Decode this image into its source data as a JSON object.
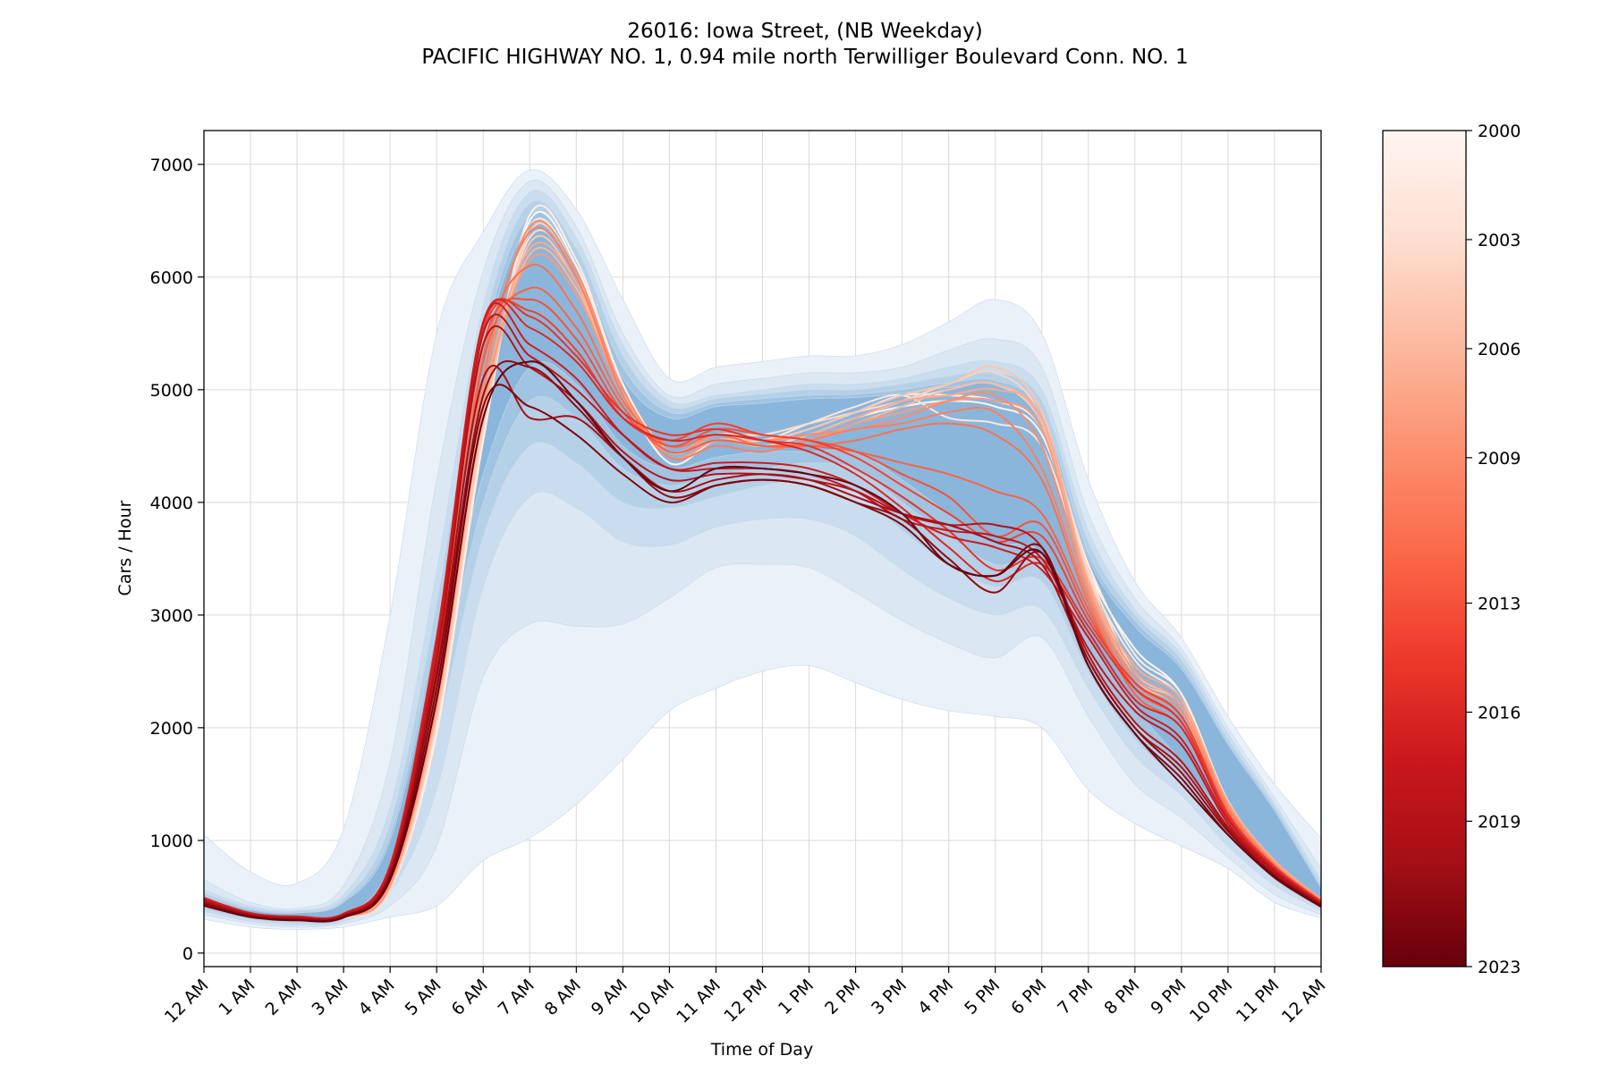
{
  "chart_data": {
    "type": "line",
    "title": "26016: Iowa Street, (NB Weekday)",
    "subtitle": "PACIFIC HIGHWAY NO. 1,  0.94 mile north Terwilliger Boulevard Conn. NO. 1",
    "xlabel": "Time of Day",
    "ylabel": "Cars / Hour",
    "grid": true,
    "x": [
      0,
      1,
      2,
      3,
      4,
      5,
      6,
      7,
      8,
      9,
      10,
      11,
      12,
      13,
      14,
      15,
      16,
      17,
      18,
      19,
      20,
      21,
      22,
      23,
      24
    ],
    "xticks": [
      "12 AM",
      "1 AM",
      "2 AM",
      "3 AM",
      "4 AM",
      "5 AM",
      "6 AM",
      "7 AM",
      "8 AM",
      "9 AM",
      "10 AM",
      "11 AM",
      "12 PM",
      "1 PM",
      "2 PM",
      "3 PM",
      "4 PM",
      "5 PM",
      "6 PM",
      "7 PM",
      "8 PM",
      "9 PM",
      "10 PM",
      "11 PM",
      "12 AM"
    ],
    "xlim": [
      0,
      24
    ],
    "yticks": [
      0,
      1000,
      2000,
      3000,
      4000,
      5000,
      6000,
      7000
    ],
    "ylim": [
      -120,
      7300
    ],
    "bands": [
      {
        "upper": [
          1050,
          720,
          620,
          1100,
          3000,
          5500,
          6400,
          6950,
          6600,
          5800,
          5100,
          5200,
          5250,
          5300,
          5300,
          5400,
          5600,
          5800,
          5500,
          4200,
          3300,
          2800,
          2100,
          1500,
          1020
        ],
        "lower": [
          300,
          230,
          210,
          230,
          320,
          420,
          820,
          1020,
          1320,
          1720,
          2150,
          2350,
          2500,
          2550,
          2400,
          2250,
          2150,
          2100,
          2000,
          1450,
          1150,
          950,
          750,
          450,
          310
        ]
      },
      {
        "upper": [
          650,
          450,
          400,
          600,
          1700,
          4200,
          6050,
          6850,
          6450,
          5500,
          4950,
          5050,
          5100,
          5150,
          5150,
          5200,
          5350,
          5450,
          5200,
          3900,
          3150,
          2700,
          2000,
          1380,
          750
        ],
        "lower": [
          340,
          260,
          230,
          260,
          420,
          950,
          2450,
          2920,
          2900,
          2920,
          3150,
          3420,
          3450,
          3420,
          3200,
          2950,
          2750,
          2620,
          2800,
          2100,
          1500,
          1200,
          850,
          520,
          340
        ]
      },
      {
        "upper": [
          560,
          420,
          380,
          520,
          1300,
          3400,
          5750,
          6750,
          6350,
          5400,
          4900,
          4950,
          5000,
          5050,
          5050,
          5100,
          5200,
          5250,
          5000,
          3750,
          3050,
          2650,
          1950,
          1330,
          650
        ],
        "lower": [
          370,
          280,
          250,
          280,
          540,
          1450,
          3250,
          4050,
          3950,
          3650,
          3620,
          3780,
          3850,
          3850,
          3700,
          3400,
          3150,
          3000,
          3050,
          2350,
          1750,
          1400,
          950,
          600,
          380
        ]
      },
      {
        "upper": [
          530,
          400,
          370,
          480,
          1150,
          3100,
          5550,
          6650,
          6250,
          5300,
          4850,
          4920,
          4960,
          5000,
          5000,
          5050,
          5120,
          5150,
          4900,
          3650,
          3000,
          2600,
          1900,
          1300,
          610
        ],
        "lower": [
          390,
          300,
          270,
          300,
          650,
          1950,
          3700,
          4500,
          4350,
          4000,
          3950,
          4050,
          4150,
          4200,
          4100,
          3750,
          3450,
          3250,
          3300,
          2500,
          1900,
          1500,
          1050,
          650,
          400
        ]
      },
      {
        "upper": [
          510,
          390,
          360,
          460,
          1050,
          2900,
          5400,
          6550,
          6150,
          5200,
          4800,
          4880,
          4920,
          4950,
          4960,
          5000,
          5060,
          5080,
          4800,
          3550,
          2950,
          2550,
          1870,
          1280,
          590
        ],
        "lower": [
          410,
          315,
          285,
          320,
          720,
          2250,
          4000,
          4900,
          4750,
          4300,
          4150,
          4250,
          4300,
          4350,
          4300,
          4000,
          3700,
          3450,
          3450,
          2650,
          2050,
          1600,
          1120,
          700,
          420
        ]
      },
      {
        "upper": [
          495,
          380,
          355,
          450,
          1000,
          2800,
          5300,
          6450,
          6050,
          5100,
          4750,
          4850,
          4880,
          4920,
          4930,
          4970,
          5020,
          5040,
          4720,
          3500,
          2900,
          2520,
          1850,
          1260,
          575
        ],
        "lower": [
          425,
          325,
          295,
          335,
          780,
          2450,
          4250,
          5200,
          5050,
          4500,
          4300,
          4400,
          4450,
          4450,
          4450,
          4200,
          3900,
          3650,
          3550,
          2780,
          2180,
          1700,
          1180,
          740,
          430
        ]
      }
    ],
    "band_colors": [
      "#eaf1f8",
      "#dbe8f3",
      "#c9ddee",
      "#b5d1e8",
      "#a0c4e2",
      "#8ab6db"
    ],
    "series_years": [
      2000,
      2001,
      2002,
      2003,
      2004,
      2005,
      2006,
      2007,
      2008,
      2009,
      2010,
      2011,
      2012,
      2013,
      2014,
      2015,
      2016,
      2017,
      2018,
      2019,
      2020,
      2021,
      2022,
      2023
    ],
    "series": [
      {
        "values": [
          430,
          330,
          300,
          320,
          580,
          2000,
          4600,
          6500,
          6100,
          5000,
          4350,
          4550,
          4500,
          4600,
          4750,
          4850,
          4900,
          4850,
          4600,
          3400,
          2700,
          2300,
          1300,
          800,
          470
        ]
      },
      {
        "values": [
          420,
          320,
          290,
          310,
          560,
          1950,
          4550,
          6550,
          6150,
          5050,
          4450,
          4600,
          4550,
          4650,
          4800,
          4950,
          4950,
          4900,
          4650,
          3450,
          2650,
          2300,
          1350,
          820,
          470
        ]
      },
      {
        "values": [
          440,
          335,
          305,
          325,
          600,
          2100,
          4700,
          6450,
          6050,
          4950,
          4400,
          4550,
          4550,
          4700,
          4850,
          4950,
          4750,
          4700,
          4500,
          3350,
          2600,
          2250,
          1300,
          800,
          480
        ]
      },
      {
        "values": [
          450,
          340,
          310,
          330,
          620,
          2150,
          4750,
          6350,
          6000,
          4950,
          4450,
          4600,
          4600,
          4700,
          4800,
          4900,
          5000,
          5050,
          4700,
          3400,
          2500,
          2200,
          1280,
          790,
          470
        ]
      },
      {
        "values": [
          430,
          325,
          295,
          315,
          570,
          2050,
          4650,
          6400,
          6050,
          5000,
          4400,
          4550,
          4500,
          4600,
          4750,
          4900,
          5050,
          5150,
          4750,
          3350,
          2450,
          2150,
          1270,
          780,
          460
        ]
      },
      {
        "values": [
          440,
          330,
          300,
          320,
          590,
          2100,
          4700,
          6300,
          5950,
          4950,
          4400,
          4550,
          4550,
          4650,
          4800,
          4950,
          5050,
          5200,
          4800,
          3300,
          2450,
          2200,
          1300,
          800,
          470
        ]
      },
      {
        "values": [
          450,
          335,
          305,
          325,
          610,
          2150,
          4800,
          6200,
          5900,
          4950,
          4450,
          4600,
          4500,
          4550,
          4700,
          4850,
          5000,
          5050,
          4700,
          3250,
          2500,
          2200,
          1320,
          810,
          480
        ]
      },
      {
        "values": [
          460,
          340,
          310,
          330,
          640,
          2250,
          4900,
          6250,
          5950,
          5000,
          4450,
          4600,
          4550,
          4600,
          4750,
          4900,
          4950,
          5000,
          4750,
          3300,
          2550,
          2250,
          1340,
          820,
          480
        ]
      },
      {
        "values": [
          450,
          330,
          300,
          320,
          600,
          2200,
          4850,
          6150,
          5850,
          4950,
          4400,
          4550,
          4500,
          4550,
          4700,
          4800,
          4900,
          4900,
          4650,
          3250,
          2500,
          2200,
          1320,
          800,
          470
        ]
      },
      {
        "values": [
          460,
          340,
          310,
          330,
          650,
          2300,
          5000,
          6450,
          6050,
          5000,
          4450,
          4600,
          4550,
          4600,
          4650,
          4750,
          4900,
          4950,
          4500,
          3200,
          2450,
          2150,
          1300,
          790,
          470
        ]
      },
      {
        "values": [
          470,
          345,
          315,
          335,
          680,
          2400,
          5100,
          6400,
          6000,
          4950,
          4400,
          4500,
          4450,
          4550,
          4650,
          4700,
          4800,
          4800,
          4300,
          3150,
          2400,
          2100,
          1280,
          780,
          460
        ]
      },
      {
        "values": [
          480,
          350,
          320,
          340,
          720,
          2550,
          5300,
          6100,
          5700,
          4900,
          4500,
          4600,
          4500,
          4500,
          4550,
          4650,
          4700,
          4600,
          4200,
          3100,
          2350,
          2050,
          1250,
          770,
          460
        ]
      },
      {
        "values": [
          470,
          345,
          315,
          335,
          700,
          2500,
          5250,
          5900,
          5550,
          4850,
          4450,
          4550,
          4500,
          4500,
          4450,
          4350,
          4250,
          4100,
          3900,
          3050,
          2300,
          2000,
          1220,
          760,
          450
        ]
      },
      {
        "values": [
          480,
          350,
          320,
          345,
          740,
          2650,
          5400,
          5800,
          5450,
          4800,
          4500,
          4650,
          4600,
          4550,
          4450,
          4250,
          4050,
          3700,
          3800,
          3000,
          2350,
          2050,
          1230,
          760,
          450
        ]
      },
      {
        "values": [
          490,
          355,
          325,
          350,
          770,
          2750,
          5500,
          5700,
          5350,
          4750,
          4550,
          4700,
          4600,
          4550,
          4400,
          4150,
          3900,
          3650,
          3700,
          2950,
          2400,
          2100,
          1240,
          770,
          460
        ]
      },
      {
        "values": [
          480,
          350,
          320,
          345,
          760,
          2750,
          5550,
          5650,
          5300,
          4800,
          4600,
          4650,
          4550,
          4500,
          4300,
          4050,
          3750,
          3400,
          3500,
          2900,
          2350,
          2050,
          1220,
          760,
          450
        ]
      },
      {
        "values": [
          490,
          355,
          325,
          350,
          780,
          2800,
          5600,
          5550,
          5250,
          4750,
          4550,
          4600,
          4550,
          4450,
          4250,
          3950,
          3600,
          3300,
          3450,
          2850,
          2250,
          2000,
          1200,
          750,
          450
        ]
      },
      {
        "values": [
          480,
          350,
          320,
          345,
          760,
          2750,
          5600,
          5400,
          5100,
          4600,
          4300,
          4350,
          4350,
          4300,
          4150,
          3900,
          3700,
          3600,
          3400,
          2800,
          2200,
          1900,
          1180,
          740,
          440
        ]
      },
      {
        "values": [
          470,
          345,
          315,
          340,
          740,
          2650,
          5500,
          5300,
          5000,
          4600,
          4300,
          4300,
          4300,
          4250,
          4100,
          3850,
          3750,
          3700,
          3500,
          2700,
          2150,
          1850,
          1150,
          730,
          440
        ]
      },
      {
        "values": [
          460,
          340,
          310,
          335,
          720,
          2600,
          5400,
          5200,
          4900,
          4450,
          4200,
          4250,
          4250,
          4200,
          4100,
          3900,
          3800,
          3800,
          3600,
          2650,
          2050,
          1700,
          1120,
          720,
          430
        ]
      },
      {
        "values": [
          450,
          335,
          305,
          330,
          700,
          2500,
          5100,
          4750,
          4750,
          4400,
          4100,
          4200,
          4250,
          4200,
          4050,
          3900,
          3800,
          3650,
          3450,
          2600,
          2000,
          1650,
          1100,
          700,
          430
        ]
      },
      {
        "values": [
          440,
          330,
          300,
          325,
          690,
          2450,
          4950,
          5200,
          4850,
          4400,
          4050,
          4150,
          4200,
          4150,
          4000,
          3850,
          3500,
          3200,
          3550,
          2600,
          2000,
          1600,
          1080,
          690,
          420
        ]
      },
      {
        "values": [
          430,
          325,
          295,
          320,
          670,
          2350,
          4850,
          4850,
          4600,
          4250,
          4000,
          4150,
          4200,
          4150,
          4000,
          3800,
          3450,
          3350,
          3600,
          2550,
          1950,
          1550,
          1050,
          680,
          420
        ]
      },
      {
        "values": [
          420,
          320,
          290,
          315,
          650,
          2250,
          4750,
          5250,
          4900,
          4400,
          4100,
          4300,
          4300,
          4250,
          4150,
          3900,
          3450,
          3350,
          3550,
          2550,
          1950,
          1500,
          1050,
          670,
          410
        ]
      }
    ],
    "colorbar": {
      "label": "",
      "min": 2000,
      "max": 2023,
      "ticks": [
        2000,
        2003,
        2006,
        2009,
        2013,
        2016,
        2019,
        2023
      ],
      "colors": [
        "#fff5f0",
        "#fee0d2",
        "#fcbba1",
        "#fc9272",
        "#fb6a4a",
        "#ef3b2c",
        "#cb181d",
        "#a50f15",
        "#67000d"
      ]
    }
  }
}
